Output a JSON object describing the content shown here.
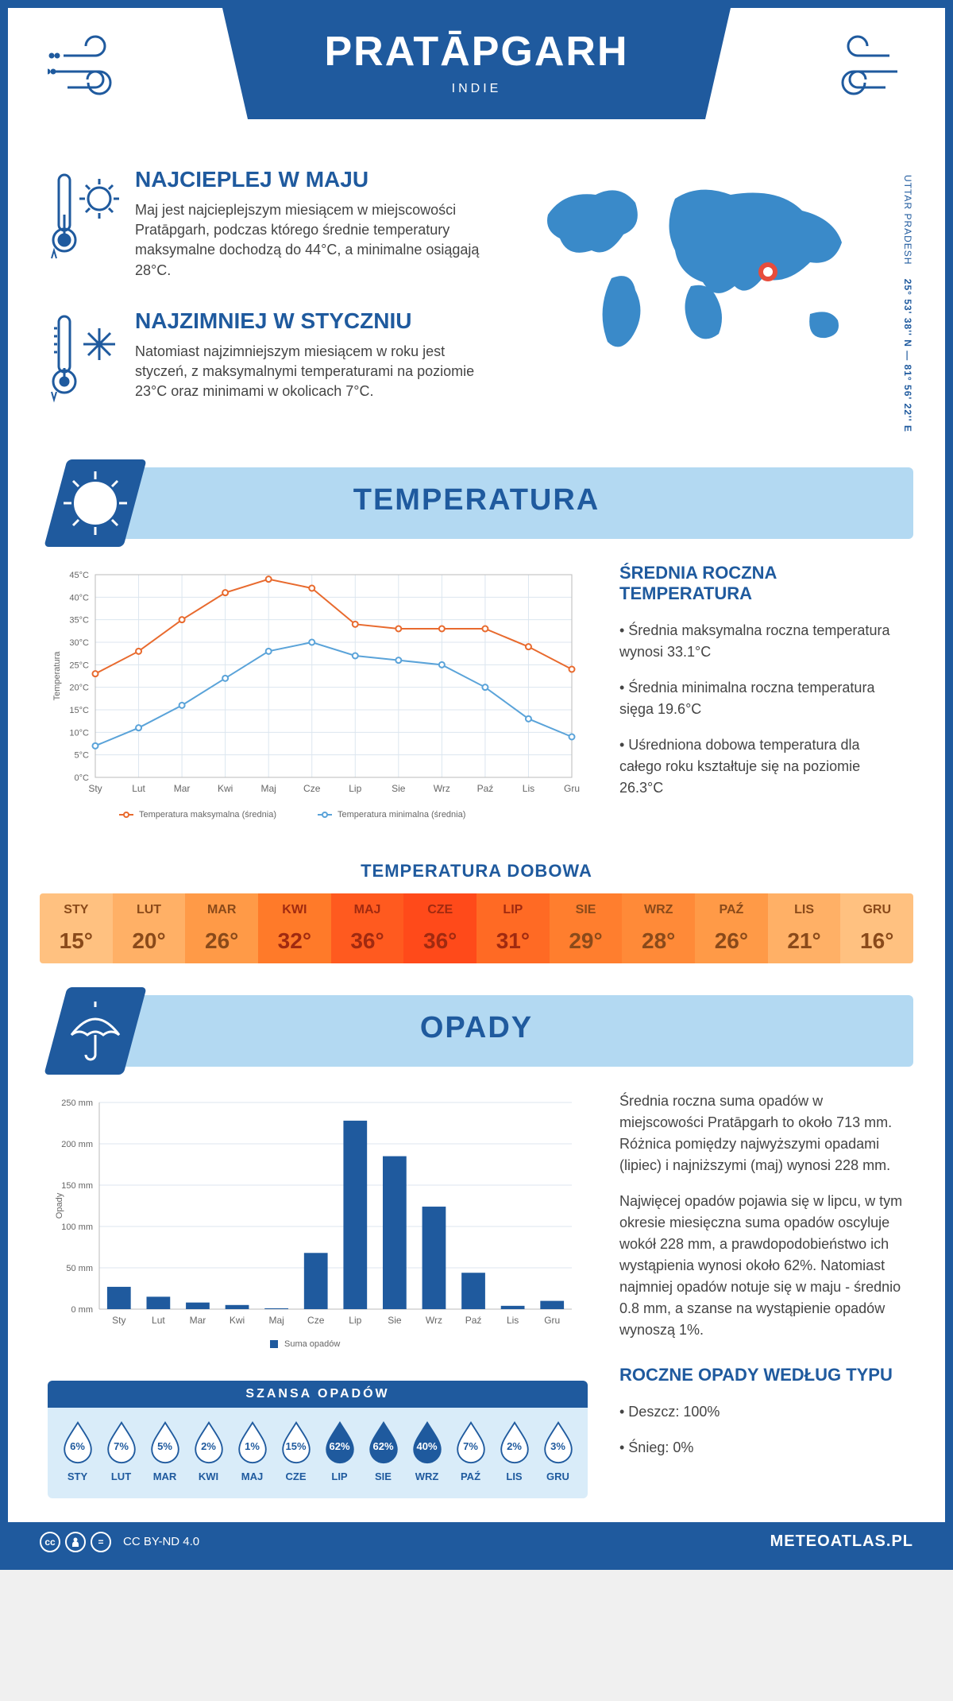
{
  "header": {
    "title": "PRATĀPGARH",
    "subtitle": "INDIE"
  },
  "intro": {
    "warm": {
      "title": "NAJCIEPLEJ W MAJU",
      "text": "Maj jest najcieplejszym miesiącem w miejscowości Pratāpgarh, podczas którego średnie temperatury maksymalne dochodzą do 44°C, a minimalne osiągają 28°C."
    },
    "cold": {
      "title": "NAJZIMNIEJ W STYCZNIU",
      "text": "Natomiast najzimniejszym miesiącem w roku jest styczeń, z maksymalnymi temperaturami na poziomie 23°C oraz minimami w okolicach 7°C."
    },
    "coords": {
      "region": "UTTAR PRADESH",
      "latlon": "25° 53' 38'' N — 81° 56' 22'' E"
    },
    "marker_color": "#e74c3c"
  },
  "temperature": {
    "banner_title": "TEMPERATURA",
    "chart": {
      "type": "line",
      "months": [
        "Sty",
        "Lut",
        "Mar",
        "Kwi",
        "Maj",
        "Cze",
        "Lip",
        "Sie",
        "Wrz",
        "Paź",
        "Lis",
        "Gru"
      ],
      "tmax": [
        23,
        28,
        35,
        41,
        44,
        42,
        34,
        33,
        33,
        33,
        29,
        24
      ],
      "tmin": [
        7,
        11,
        16,
        22,
        28,
        30,
        27,
        26,
        25,
        20,
        13,
        9
      ],
      "ytick_step": 5,
      "ylim": [
        0,
        45
      ],
      "ylabel": "Temperatura",
      "color_max": "#e86a2e",
      "color_min": "#5aa3d9",
      "grid_color": "#dce6ef",
      "legend_max": "Temperatura maksymalna (średnia)",
      "legend_min": "Temperatura minimalna (średnia)"
    },
    "side": {
      "title": "ŚREDNIA ROCZNA TEMPERATURA",
      "bullets": [
        "• Średnia maksymalna roczna temperatura wynosi 33.1°C",
        "• Średnia minimalna roczna temperatura sięga 19.6°C",
        "• Uśredniona dobowa temperatura dla całego roku kształtuje się na poziomie 26.3°C"
      ]
    },
    "dobowa": {
      "title": "TEMPERATURA DOBOWA",
      "months": [
        "STY",
        "LUT",
        "MAR",
        "KWI",
        "MAJ",
        "CZE",
        "LIP",
        "SIE",
        "WRZ",
        "PAŹ",
        "LIS",
        "GRU"
      ],
      "values": [
        "15°",
        "20°",
        "26°",
        "32°",
        "36°",
        "36°",
        "31°",
        "29°",
        "28°",
        "26°",
        "21°",
        "16°"
      ],
      "bg_colors": [
        "#ffc180",
        "#ffb066",
        "#ff9a47",
        "#ff7a29",
        "#ff5a1f",
        "#ff4a1a",
        "#ff6a24",
        "#ff7e2e",
        "#ff8a38",
        "#ff9a47",
        "#ffb066",
        "#ffc180"
      ],
      "text_color": "#8a4a1a",
      "text_color_hot": "#a02a10"
    }
  },
  "precip": {
    "banner_title": "OPADY",
    "chart": {
      "type": "bar",
      "months": [
        "Sty",
        "Lut",
        "Mar",
        "Kwi",
        "Maj",
        "Cze",
        "Lip",
        "Sie",
        "Wrz",
        "Paź",
        "Lis",
        "Gru"
      ],
      "values": [
        27,
        15,
        8,
        5,
        1,
        68,
        228,
        185,
        124,
        44,
        4,
        10
      ],
      "ylim": [
        0,
        250
      ],
      "ytick_step": 50,
      "ylabel": "Opady",
      "bar_color": "#1f5a9e",
      "grid_color": "#dce6ef",
      "legend": "Suma opadów"
    },
    "side": {
      "para1": "Średnia roczna suma opadów w miejscowości Pratāpgarh to około 713 mm. Różnica pomiędzy najwyższymi opadami (lipiec) i najniższymi (maj) wynosi 228 mm.",
      "para2": "Najwięcej opadów pojawia się w lipcu, w tym okresie miesięczna suma opadów oscyluje wokół 228 mm, a prawdopodobieństwo ich wystąpienia wynosi około 62%. Natomiast najmniej opadów notuje się w maju - średnio 0.8 mm, a szanse na wystąpienie opadów wynoszą 1%.",
      "types_title": "ROCZNE OPADY WEDŁUG TYPU",
      "types_bullets": [
        "• Deszcz: 100%",
        "• Śnieg: 0%"
      ]
    },
    "chance": {
      "title": "SZANSA OPADÓW",
      "months": [
        "STY",
        "LUT",
        "MAR",
        "KWI",
        "MAJ",
        "CZE",
        "LIP",
        "SIE",
        "WRZ",
        "PAŹ",
        "LIS",
        "GRU"
      ],
      "pct": [
        "6%",
        "7%",
        "5%",
        "2%",
        "1%",
        "15%",
        "62%",
        "62%",
        "40%",
        "7%",
        "2%",
        "3%"
      ],
      "fill_levels": [
        0.12,
        0.14,
        0.1,
        0.04,
        0.02,
        0.28,
        1.0,
        1.0,
        0.7,
        0.14,
        0.04,
        0.06
      ],
      "drop_fill": "#1f5a9e",
      "drop_empty": "#ffffff",
      "drop_stroke": "#1f5a9e"
    }
  },
  "footer": {
    "license": "CC BY-ND 4.0",
    "site": "METEOATLAS.PL"
  },
  "colors": {
    "primary": "#1f5a9e",
    "banner_bg": "#b3d9f2",
    "map_fill": "#3a8ac9"
  }
}
